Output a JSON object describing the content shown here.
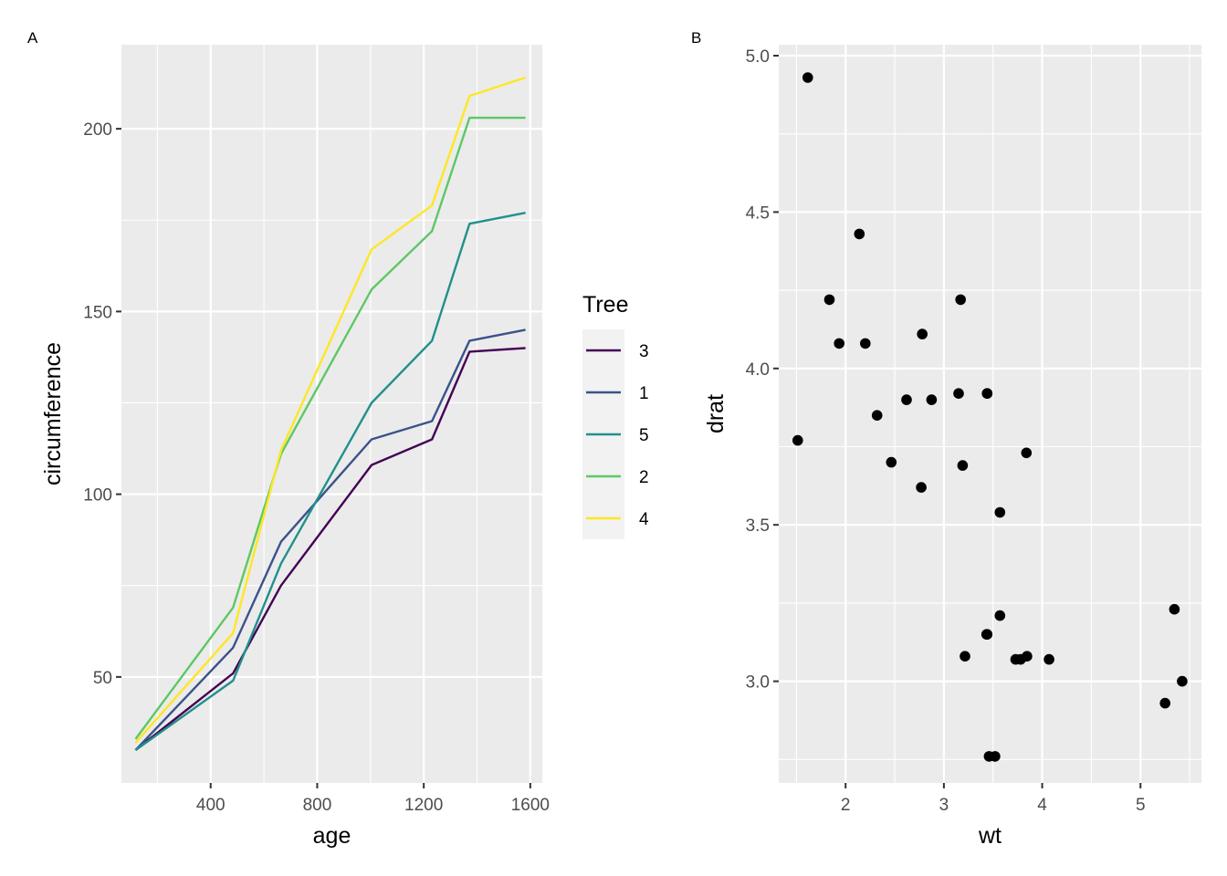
{
  "chart_data": [
    {
      "tag": "A",
      "type": "line",
      "xlabel": "age",
      "ylabel": "circumference",
      "xlim": [
        65,
        1645
      ],
      "ylim": [
        21,
        223
      ],
      "xticks": [
        400,
        800,
        1200,
        1600
      ],
      "xminor": [
        200,
        600,
        1000,
        1400
      ],
      "yticks": [
        50,
        100,
        150,
        200
      ],
      "yminor": [
        75,
        125,
        175
      ],
      "x": [
        118,
        484,
        664,
        1004,
        1231,
        1372,
        1582
      ],
      "legend": {
        "title": "Tree",
        "position": "right"
      },
      "series": [
        {
          "name": "3",
          "color": "#440154",
          "values": [
            30,
            51,
            75,
            108,
            115,
            139,
            140
          ]
        },
        {
          "name": "1",
          "color": "#3B528B",
          "values": [
            30,
            58,
            87,
            115,
            120,
            142,
            145
          ]
        },
        {
          "name": "5",
          "color": "#21908C",
          "values": [
            30,
            49,
            81,
            125,
            142,
            174,
            177
          ]
        },
        {
          "name": "2",
          "color": "#5DC863",
          "values": [
            33,
            69,
            111,
            156,
            172,
            203,
            203
          ]
        },
        {
          "name": "4",
          "color": "#FDE725",
          "values": [
            32,
            62,
            112,
            167,
            179,
            209,
            214
          ]
        }
      ]
    },
    {
      "tag": "B",
      "type": "scatter",
      "xlabel": "wt",
      "ylabel": "drat",
      "xlim": [
        1.32,
        5.62
      ],
      "ylim": [
        2.675,
        5.035
      ],
      "xticks": [
        2,
        3,
        4,
        5
      ],
      "xminor": [
        1.5,
        2.5,
        3.5,
        4.5,
        5.5
      ],
      "yticks": [
        3.0,
        3.5,
        4.0,
        4.5,
        5.0
      ],
      "yminor": [
        2.75,
        3.25,
        3.75,
        4.25,
        4.75
      ],
      "point_color": "#000000",
      "points": [
        [
          2.62,
          3.9
        ],
        [
          2.875,
          3.9
        ],
        [
          2.32,
          3.85
        ],
        [
          3.215,
          3.08
        ],
        [
          3.44,
          3.15
        ],
        [
          3.46,
          2.76
        ],
        [
          3.57,
          3.21
        ],
        [
          3.19,
          3.69
        ],
        [
          3.15,
          3.92
        ],
        [
          3.44,
          3.92
        ],
        [
          3.44,
          3.92
        ],
        [
          4.07,
          3.07
        ],
        [
          3.73,
          3.07
        ],
        [
          3.78,
          3.07
        ],
        [
          5.25,
          2.93
        ],
        [
          5.424,
          3.0
        ],
        [
          5.345,
          3.23
        ],
        [
          2.2,
          4.08
        ],
        [
          1.615,
          4.93
        ],
        [
          1.835,
          4.22
        ],
        [
          2.465,
          3.7
        ],
        [
          3.52,
          2.76
        ],
        [
          3.435,
          3.15
        ],
        [
          3.84,
          3.73
        ],
        [
          3.845,
          3.08
        ],
        [
          1.935,
          4.08
        ],
        [
          2.14,
          4.43
        ],
        [
          1.513,
          3.77
        ],
        [
          3.17,
          4.22
        ],
        [
          2.77,
          3.62
        ],
        [
          3.57,
          3.54
        ],
        [
          2.78,
          4.11
        ]
      ]
    }
  ]
}
